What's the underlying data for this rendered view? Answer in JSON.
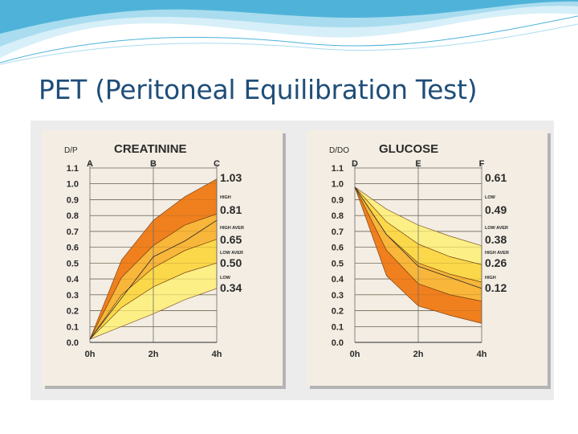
{
  "slide": {
    "title": "PET (Peritoneal Equilibration Test)"
  },
  "theme": {
    "title_color": "#1f4e79",
    "wave_colors": [
      "#4fb3d9",
      "#a9dcef",
      "#d7eff8"
    ],
    "band_colors": {
      "high": "#f07f1e",
      "high_average": "#f8b63a",
      "low_average": "#fbd84a",
      "low": "#fcef86",
      "stripe": "#ea6a1b"
    }
  },
  "chart_data": [
    {
      "type": "area",
      "title": "CREATININE",
      "ylabel": "D/P",
      "ylim": [
        0,
        1.1
      ],
      "yticks": [
        "1.1",
        "1.0",
        "0.9",
        "0.8",
        "0.7",
        "0.6",
        "0.5",
        "0.4",
        "0.3",
        "0.2",
        "0.1",
        "0.0"
      ],
      "x": [
        0,
        1,
        2,
        3,
        4
      ],
      "xticks": [
        "0h",
        "2h",
        "4h"
      ],
      "column_labels": [
        "A",
        "B",
        "C"
      ],
      "grid": true,
      "bands": [
        {
          "name": "high",
          "upper": [
            0.02,
            0.52,
            0.77,
            0.92,
            1.03
          ],
          "lower": [
            0.02,
            0.41,
            0.61,
            0.74,
            0.81
          ]
        },
        {
          "name": "high_average",
          "upper": [
            0.02,
            0.41,
            0.61,
            0.74,
            0.81
          ],
          "lower": [
            0.02,
            0.3,
            0.47,
            0.58,
            0.65
          ]
        },
        {
          "name": "low_average",
          "upper": [
            0.02,
            0.3,
            0.47,
            0.58,
            0.65
          ],
          "lower": [
            0.02,
            0.22,
            0.35,
            0.44,
            0.5
          ]
        },
        {
          "name": "low",
          "upper": [
            0.02,
            0.22,
            0.35,
            0.44,
            0.5
          ],
          "lower": [
            0.02,
            0.1,
            0.18,
            0.27,
            0.34
          ]
        }
      ],
      "mean_line": [
        0.02,
        0.28,
        0.54,
        0.64,
        0.77
      ],
      "value_labels": [
        "1.03",
        "0.81",
        "0.65",
        "0.50",
        "0.34"
      ],
      "category_labels": [
        "HIGH",
        "HIGH AVER",
        "LOW AVER",
        "LOW"
      ]
    },
    {
      "type": "area",
      "title": "GLUCOSE",
      "ylabel": "D/DO",
      "ylim": [
        0,
        1.1
      ],
      "yticks": [
        "1.1",
        "1.0",
        "0.9",
        "0.8",
        "0.7",
        "0.6",
        "0.5",
        "0.4",
        "0.3",
        "0.2",
        "0.1",
        "0.0"
      ],
      "x": [
        0,
        1,
        2,
        3,
        4
      ],
      "xticks": [
        "0h",
        "2h",
        "4h"
      ],
      "column_labels": [
        "D",
        "E",
        "F"
      ],
      "grid": true,
      "bands": [
        {
          "name": "low",
          "upper": [
            0.98,
            0.84,
            0.74,
            0.67,
            0.61
          ],
          "lower": [
            0.98,
            0.76,
            0.62,
            0.54,
            0.49
          ]
        },
        {
          "name": "low_average",
          "upper": [
            0.98,
            0.76,
            0.62,
            0.54,
            0.49
          ],
          "lower": [
            0.98,
            0.68,
            0.5,
            0.43,
            0.38
          ]
        },
        {
          "name": "high_average",
          "upper": [
            0.98,
            0.68,
            0.5,
            0.43,
            0.38
          ],
          "lower": [
            0.98,
            0.58,
            0.37,
            0.3,
            0.26
          ]
        },
        {
          "name": "high",
          "upper": [
            0.98,
            0.58,
            0.37,
            0.3,
            0.26
          ],
          "lower": [
            0.98,
            0.42,
            0.23,
            0.17,
            0.12
          ]
        }
      ],
      "mean_line": [
        0.98,
        0.68,
        0.48,
        0.41,
        0.34
      ],
      "value_labels": [
        "0.61",
        "0.49",
        "0.38",
        "0.26",
        "0.12"
      ],
      "category_labels": [
        "LOW",
        "LOW AVER",
        "HIGH AVER",
        "HIGH"
      ]
    }
  ]
}
